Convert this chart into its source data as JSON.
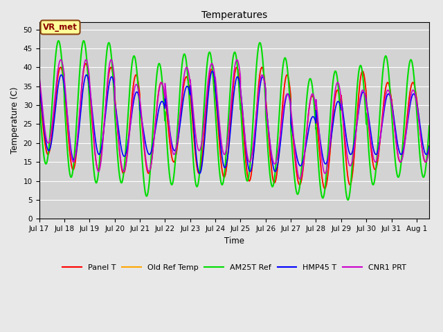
{
  "title": "Temperatures",
  "xlabel": "Time",
  "ylabel": "Temperature (C)",
  "ylim": [
    0,
    52
  ],
  "yticks": [
    0,
    5,
    10,
    15,
    20,
    25,
    30,
    35,
    40,
    45,
    50
  ],
  "bg_color": "#e8e8e8",
  "plot_bg_color": "#d3d3d3",
  "grid_color": "#ffffff",
  "annotation_text": "VR_met",
  "annotation_fg": "#8B0000",
  "annotation_bg": "#ffff99",
  "annotation_border": "#8B4513",
  "xtick_labels": [
    "Jul 17",
    "Jul 18",
    "Jul 19",
    "Jul 20",
    "Jul 21",
    "Jul 22",
    "Jul 23",
    "Jul 24",
    "Jul 25",
    "Jul 26",
    "Jul 27",
    "Jul 28",
    "Jul 29",
    "Jul 30",
    "Jul 31",
    "Aug 1"
  ],
  "series_names": [
    "Panel T",
    "Old Ref Temp",
    "AM25T Ref",
    "HMP45 T",
    "CNR1 PRT"
  ],
  "series_colors": [
    "#ff0000",
    "#ffa500",
    "#00dd00",
    "#0000ff",
    "#cc00cc"
  ],
  "series_lw": [
    1.2,
    1.2,
    1.5,
    1.2,
    1.2
  ],
  "green_peaks": [
    47,
    47,
    46.5,
    43,
    41,
    43.5,
    44,
    44,
    46.5,
    42.5,
    37,
    39,
    40.5,
    43,
    42
  ],
  "green_troughs": [
    14.5,
    11,
    9.5,
    9.5,
    6,
    9,
    8.5,
    9,
    10,
    8.5,
    6.5,
    5.5,
    5,
    9,
    11
  ],
  "red_peaks": [
    40,
    41,
    40,
    38,
    36,
    37.5,
    39.5,
    40,
    40,
    38,
    32.5,
    34,
    39,
    36,
    36
  ],
  "red_troughs": [
    17,
    13,
    13,
    12,
    12,
    15,
    12,
    11,
    10,
    9.5,
    9,
    8,
    9,
    13,
    15
  ],
  "blue_peaks": [
    38,
    38,
    37.5,
    33.5,
    31,
    35,
    39,
    37.5,
    37.5,
    33,
    27,
    31,
    33.5,
    33,
    33
  ],
  "blue_troughs": [
    18,
    15.5,
    17,
    16.5,
    17,
    18,
    12,
    13.5,
    12.5,
    12.5,
    14,
    14.5,
    17,
    17,
    17
  ],
  "purple_peaks": [
    42,
    42,
    42,
    35.5,
    36,
    40,
    41,
    42,
    38,
    33,
    33,
    36,
    34,
    34
  ],
  "purple_troughs": [
    20,
    15,
    12.5,
    12.5,
    12.5,
    17,
    18,
    17,
    15,
    14.5,
    10.5,
    12,
    14,
    15
  ]
}
